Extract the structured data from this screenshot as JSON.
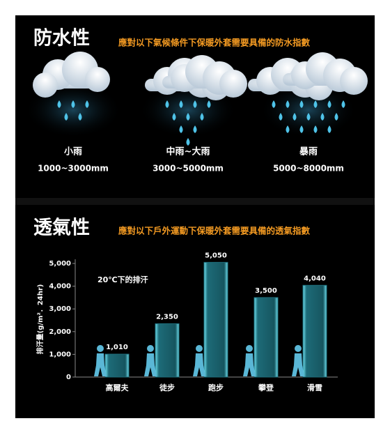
{
  "waterproof": {
    "title": "防水性",
    "subtitle": "應對以下氣候條件下保暖外套需要具備的防水指數",
    "items": [
      {
        "label": "小雨",
        "range": "1000~3000mm"
      },
      {
        "label": "中雨~大雨",
        "range": "3000~5000mm"
      },
      {
        "label": "暴雨",
        "range": "5000~8000mm"
      }
    ]
  },
  "chart_data": {
    "type": "bar",
    "title": "透氣性",
    "subtitle": "應對以下戶外運動下保暖外套需要具備的透氣指數",
    "y_label": "排汗量(g/m²．24hr)",
    "annotation": "20℃下的排汗",
    "categories": [
      "高爾夫",
      "徒步",
      "跑步",
      "攀登",
      "滑雪"
    ],
    "values": [
      1010,
      2350,
      5050,
      3500,
      4040
    ],
    "value_labels": [
      "1,010",
      "2,350",
      "5,050",
      "3,500",
      "4,040"
    ],
    "color": "#1d6b78",
    "ylim": [
      0,
      5100
    ],
    "yticks": [
      0,
      {
        "value": 1000,
        "label": "1,000"
      },
      {
        "value": 2000,
        "label": "2,000"
      },
      {
        "value": 3000,
        "label": "3,000"
      },
      {
        "value": 4000,
        "label": "4,000"
      },
      {
        "value": 5000,
        "label": "5,000"
      }
    ]
  }
}
